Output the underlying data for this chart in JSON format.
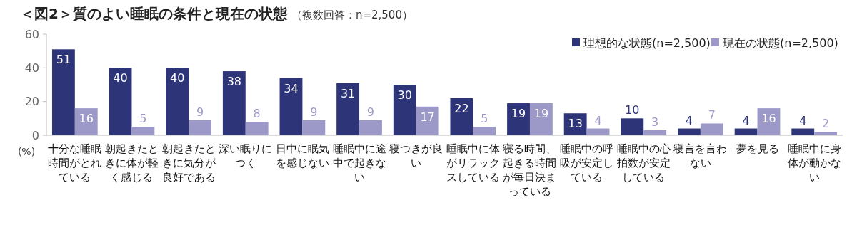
{
  "chart_data": {
    "type": "bar",
    "title": "＜図2＞質のよい睡眠の条件と現在の状態",
    "subtitle": "（複数回答：n=2,500）",
    "ylabel": "(%)",
    "categories": [
      "十分な睡眠時間がとれている",
      "朝起きたときに体が軽く感じる",
      "朝起きたときに気分が良好である",
      "深い眠りにつく",
      "日中に眠気を感じない",
      "睡眠中に途中で起きない",
      "寝つきが良い",
      "睡眠中に体がリラックスしている",
      "寝る時間、起きる時間が毎日決まっている",
      "睡眠中の呼吸が安定している",
      "睡眠中の心拍数が安定している",
      "寝言を言わない",
      "夢を見る",
      "睡眠中に身体が動かない"
    ],
    "series": [
      {
        "name": "理想的な状態(n=2,500)",
        "color": "#2e3478",
        "values": [
          51,
          40,
          40,
          38,
          34,
          31,
          30,
          22,
          19,
          13,
          10,
          4,
          4,
          4
        ]
      },
      {
        "name": "現在の状態(n=2,500)",
        "color": "#9c98c8",
        "values": [
          16,
          5,
          9,
          8,
          9,
          9,
          17,
          5,
          19,
          4,
          3,
          7,
          16,
          2
        ]
      }
    ],
    "ylim": [
      0,
      60
    ],
    "yticks": [
      0,
      20,
      40,
      60
    ],
    "grid": false,
    "legend": "top right",
    "data_labels": true
  }
}
